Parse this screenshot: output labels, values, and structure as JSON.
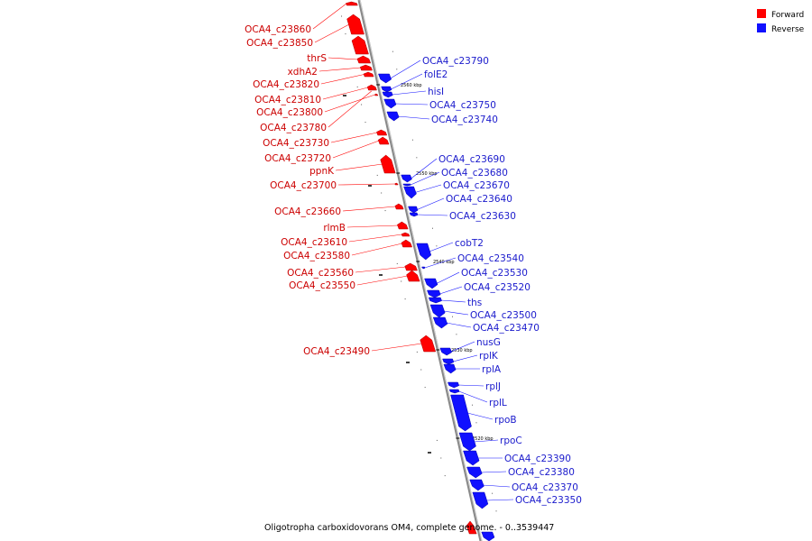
{
  "legend": {
    "forward": "Forward",
    "reverse": "Reverse",
    "forward_color": "#ff0000",
    "reverse_color": "#1010ff"
  },
  "caption": "Oligotropha carboxidovorans OM4, complete genome. - 0..3539447",
  "kbp_ticks": [
    "2560 kbp",
    "2550 kbp",
    "2540 kbp",
    "2530 kbp",
    "2520 kbp"
  ],
  "forward_genes": [
    "OCA4_c23860",
    "OCA4_c23850",
    "thrS",
    "xdhA2",
    "OCA4_c23820",
    "OCA4_c23810",
    "OCA4_c23800",
    "OCA4_c23780",
    "OCA4_c23730",
    "OCA4_c23720",
    "ppnK",
    "OCA4_c23700",
    "OCA4_c23660",
    "rlmB",
    "OCA4_c23610",
    "OCA4_c23580",
    "OCA4_c23560",
    "OCA4_c23550",
    "OCA4_c23490"
  ],
  "reverse_genes": [
    "OCA4_c23790",
    "folE2",
    "hisI",
    "OCA4_c23750",
    "OCA4_c23740",
    "OCA4_c23690",
    "OCA4_c23680",
    "OCA4_c23670",
    "OCA4_c23640",
    "OCA4_c23630",
    "cobT2",
    "OCA4_c23540",
    "OCA4_c23530",
    "OCA4_c23520",
    "ths",
    "OCA4_c23500",
    "OCA4_c23470",
    "nusG",
    "rplK",
    "rplA",
    "rplJ",
    "rplL",
    "rpoB",
    "rpoC",
    "OCA4_c23390",
    "OCA4_c23380",
    "OCA4_c23370",
    "OCA4_c23350"
  ]
}
